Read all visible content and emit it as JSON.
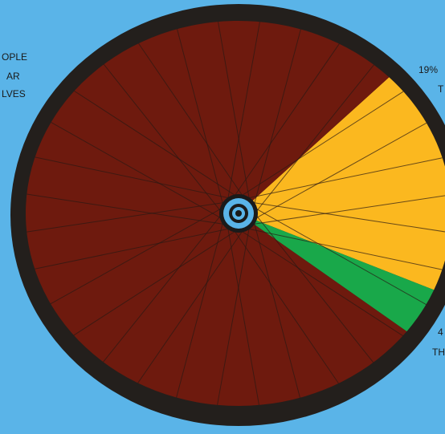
{
  "chart_data": {
    "type": "pie",
    "series": [
      {
        "values": [
          19,
          4,
          77
        ],
        "colors": [
          "#fbb81f",
          "#19a84a",
          "#6e1a0e"
        ]
      }
    ],
    "annotations": [
      "OPLE",
      "AR",
      "LVES",
      "19%",
      "T",
      "4",
      "TH"
    ]
  }
}
